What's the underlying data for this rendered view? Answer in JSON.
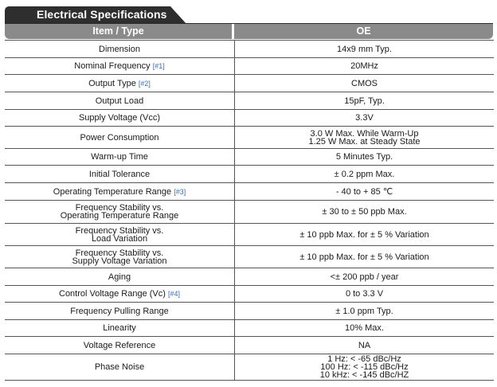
{
  "title": "Electrical Specifications",
  "header": {
    "item": "Item / Type",
    "value": "OE"
  },
  "colors": {
    "title_bg": "#2e2e2e",
    "header_bg": "#8a8a8a",
    "note": "#3a6bb5"
  },
  "rows": [
    {
      "item": "Dimension",
      "note": "",
      "value": "14x9 mm Typ."
    },
    {
      "item": "Nominal Frequency",
      "note": "[#1]",
      "value": "20MHz"
    },
    {
      "item": "Output Type",
      "note": "[#2]",
      "value": "CMOS"
    },
    {
      "item": "Output Load",
      "note": "",
      "value": "15pF, Typ."
    },
    {
      "item": "Supply Voltage (Vcc)",
      "note": "",
      "value": "3.3V"
    },
    {
      "item": "Power Consumption",
      "note": "",
      "value": "3.0 W Max. While Warm-Up",
      "value2": "1.25 W Max. at Steady State"
    },
    {
      "item": "Warm-up Time",
      "note": "",
      "value": "5 Minutes Typ."
    },
    {
      "item": "Initial Tolerance",
      "note": "",
      "value": "± 0.2 ppm Max."
    },
    {
      "item": "Operating Temperature Range",
      "note": "[#3]",
      "value": "- 40 to + 85 ℃"
    },
    {
      "item": "Frequency Stability vs.",
      "item2": "Operating Temperature Range",
      "note": "",
      "value": "± 30 to ± 50 ppb Max."
    },
    {
      "item": "Frequency Stability vs.",
      "item2": "Load Variation",
      "note": "",
      "value": "± 10 ppb Max. for ± 5 % Variation"
    },
    {
      "item": "Frequency Stability vs.",
      "item2": "Supply Voltage Variation",
      "note": "",
      "value": "± 10 ppb Max. for ± 5 % Variation"
    },
    {
      "item": "Aging",
      "note": "",
      "value": "<± 200 ppb / year"
    },
    {
      "item": "Control Voltage Range (Vc)",
      "note": "[#4]",
      "value": "0 to 3.3 V"
    },
    {
      "item": "Frequency Pulling Range",
      "note": "",
      "value": "± 1.0 ppm Typ."
    },
    {
      "item": "Linearity",
      "note": "",
      "value": "10% Max."
    },
    {
      "item": "Voltage Reference",
      "note": "",
      "value": "NA"
    },
    {
      "item": "Phase Noise",
      "note": "",
      "value": "1 Hz: < -65 dBc/Hz",
      "value2": "100 Hz: < -115 dBc/Hz",
      "value3": "10 kHz: < -145 dBc/HZ"
    }
  ]
}
